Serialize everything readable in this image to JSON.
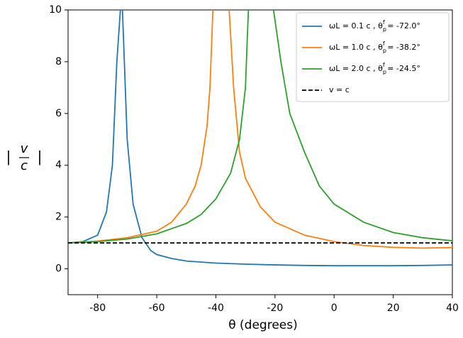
{
  "chart_data": {
    "type": "line",
    "xlabel": "θ (degrees)",
    "ylabel": {
      "left": "|",
      "num": "v",
      "den": "c",
      "right": "|"
    },
    "xlim": [
      -90,
      40
    ],
    "ylim": [
      -1,
      10
    ],
    "xticks": [
      -80,
      -60,
      -40,
      -20,
      0,
      20,
      40
    ],
    "yticks": [
      0,
      2,
      4,
      6,
      8,
      10
    ],
    "legend": "upper right",
    "series": [
      {
        "name": [
          "ωL = 0.1 c , θ",
          "p",
          "f",
          " = -72.0°"
        ],
        "color": "#1f77b4",
        "x": [
          -90,
          -85,
          -80,
          -77,
          -75,
          -73.5,
          -72.3,
          null,
          -71.6,
          -70,
          -68,
          -65,
          -62,
          -60,
          -55,
          -50,
          -40,
          -30,
          -20,
          -10,
          0,
          10,
          20,
          30,
          40
        ],
        "values": [
          1.0,
          1.05,
          1.3,
          2.2,
          4.0,
          8.0,
          10,
          null,
          10,
          5.0,
          2.5,
          1.2,
          0.7,
          0.55,
          0.4,
          0.3,
          0.22,
          0.18,
          0.15,
          0.13,
          0.12,
          0.12,
          0.12,
          0.13,
          0.15
        ]
      },
      {
        "name": [
          "ωL = 1.0 c , θ",
          "p",
          "f",
          " = -38.2°"
        ],
        "color": "#ff7f0e",
        "x": [
          -90,
          -80,
          -70,
          -60,
          -55,
          -50,
          -47,
          -45,
          -43,
          -42,
          -41,
          null,
          -35.5,
          -34,
          -32,
          -30,
          -25,
          -20,
          -10,
          0,
          10,
          20,
          30,
          40
        ],
        "values": [
          1.0,
          1.07,
          1.2,
          1.45,
          1.8,
          2.5,
          3.2,
          4.0,
          5.5,
          7.0,
          10,
          null,
          10,
          7.0,
          4.5,
          3.5,
          2.4,
          1.8,
          1.3,
          1.05,
          0.9,
          0.83,
          0.8,
          0.82
        ]
      },
      {
        "name": [
          "ωL = 2.0 c , θ",
          "p",
          "f",
          " = -24.5°"
        ],
        "color": "#2ca02c",
        "x": [
          -90,
          -80,
          -70,
          -60,
          -50,
          -45,
          -40,
          -35,
          -32,
          -30,
          -29,
          null,
          -20.5,
          -18,
          -15,
          -10,
          -5,
          0,
          10,
          20,
          30,
          40
        ],
        "values": [
          1.0,
          1.05,
          1.15,
          1.35,
          1.75,
          2.1,
          2.7,
          3.7,
          5.0,
          7.0,
          10,
          null,
          10,
          8.0,
          6.0,
          4.5,
          3.2,
          2.5,
          1.8,
          1.4,
          1.2,
          1.08
        ]
      }
    ],
    "hline": {
      "name": "v = c",
      "value": 1,
      "color": "#000000"
    }
  }
}
